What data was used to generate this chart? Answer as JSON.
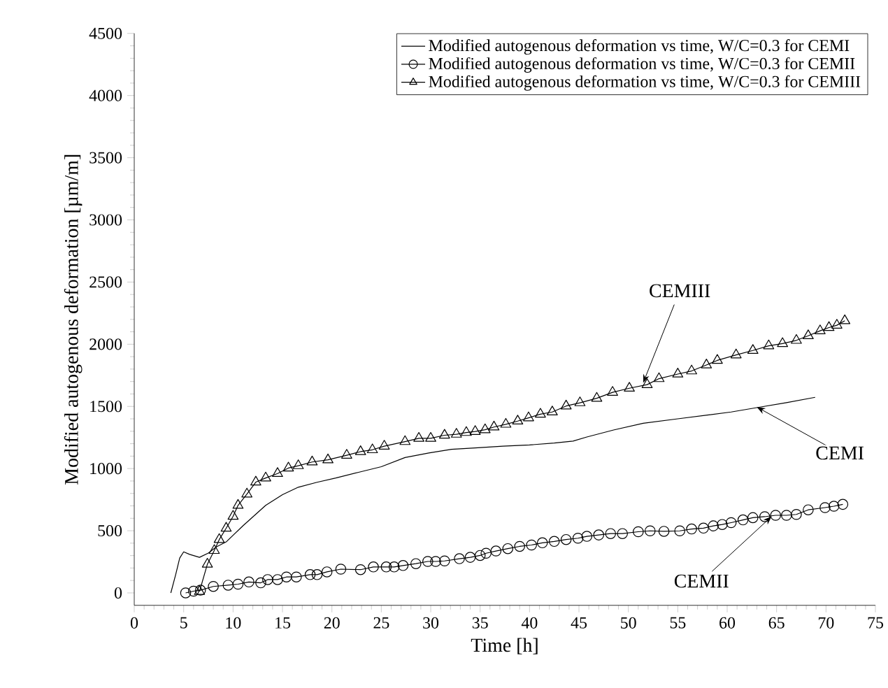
{
  "chart_data": {
    "type": "line",
    "xlabel": "Time [h]",
    "ylabel": "Modified autogenous deformation [µm/m]",
    "xlim": [
      0,
      75
    ],
    "xticks": [
      0,
      5,
      10,
      15,
      20,
      25,
      30,
      35,
      40,
      45,
      50,
      55,
      60,
      65,
      70,
      75
    ],
    "ylim": [
      -100,
      4500
    ],
    "yticks": [
      0,
      500,
      1000,
      1500,
      2000,
      2500,
      3000,
      3500,
      4000,
      4500
    ],
    "grid": false,
    "legend": "top right",
    "series": [
      {
        "name": "Modified autogenous deformation vs time, W/C=0.3 for CEMI",
        "color": "#000000",
        "marker": "none",
        "x": [
          3.7,
          4.2,
          4.6,
          5.0,
          5.6,
          6.6,
          7.5,
          8.3,
          9.3,
          11.0,
          13.3,
          15.0,
          16.6,
          18.5,
          20.4,
          22.7,
          25.0,
          27.4,
          29.8,
          32.1,
          34.5,
          37.3,
          40.0,
          42.5,
          44.4,
          45.8,
          48.5,
          51.5,
          55.0,
          58.0,
          60.4,
          63.0,
          66.0,
          68.9
        ],
        "values": [
          0,
          150,
          280,
          330,
          310,
          286,
          320,
          370,
          410,
          540,
          704,
          790,
          850,
          890,
          924,
          970,
          1015,
          1089,
          1125,
          1155,
          1166,
          1180,
          1190,
          1205,
          1221,
          1254,
          1310,
          1364,
          1400,
          1430,
          1455,
          1490,
          1530,
          1573
        ]
      },
      {
        "name": "Modified autogenous deformation vs time, W/C=0.3 for CEMII",
        "color": "#000000",
        "marker": "circle",
        "x": [
          5.2,
          6.0,
          6.7,
          8.0,
          9.5,
          10.5,
          11.6,
          12.8,
          13.5,
          14.5,
          15.4,
          16.4,
          17.8,
          18.5,
          19.5,
          20.9,
          22.9,
          24.2,
          25.5,
          26.3,
          27.2,
          28.5,
          29.7,
          30.5,
          31.4,
          32.9,
          34.0,
          35.0,
          35.6,
          36.6,
          37.8,
          39.0,
          40.2,
          41.3,
          42.5,
          43.7,
          44.9,
          45.8,
          47.0,
          48.2,
          49.4,
          51.0,
          52.2,
          53.6,
          55.2,
          56.4,
          57.6,
          58.6,
          59.5,
          60.4,
          61.6,
          62.6,
          63.8,
          64.9,
          66.0,
          67.0,
          68.2,
          69.9,
          70.8,
          71.7
        ],
        "values": [
          0,
          14,
          22,
          52,
          62,
          70,
          88,
          81,
          107,
          107,
          128,
          128,
          147,
          147,
          169,
          191,
          187,
          209,
          209,
          209,
          220,
          235,
          253,
          253,
          257,
          275,
          286,
          301,
          319,
          337,
          356,
          374,
          385,
          403,
          414,
          429,
          440,
          455,
          466,
          477,
          477,
          492,
          499,
          495,
          499,
          514,
          521,
          539,
          550,
          565,
          587,
          605,
          613,
          624,
          624,
          631,
          668,
          686,
          697,
          712
        ]
      },
      {
        "name": "Modified autogenous deformation vs time, W/C=0.3 for CEMIII",
        "color": "#000000",
        "marker": "triangle",
        "x": [
          6.6,
          7.4,
          8.1,
          8.6,
          9.3,
          10.0,
          10.5,
          11.4,
          12.3,
          13.3,
          14.5,
          15.6,
          16.6,
          18.0,
          19.6,
          21.5,
          22.9,
          24.1,
          25.3,
          27.4,
          28.8,
          30.0,
          31.4,
          32.6,
          33.6,
          34.5,
          35.5,
          36.4,
          37.6,
          38.8,
          39.9,
          41.1,
          42.3,
          43.7,
          45.1,
          46.8,
          48.4,
          50.1,
          51.9,
          53.1,
          55.0,
          56.4,
          57.9,
          59.0,
          60.9,
          62.6,
          64.2,
          65.6,
          67.0,
          68.2,
          69.4,
          70.3,
          71.1,
          71.9
        ],
        "values": [
          11,
          231,
          341,
          429,
          520,
          616,
          704,
          795,
          891,
          924,
          960,
          1004,
          1023,
          1053,
          1070,
          1107,
          1136,
          1151,
          1180,
          1217,
          1243,
          1243,
          1268,
          1276,
          1290,
          1298,
          1312,
          1334,
          1356,
          1382,
          1408,
          1437,
          1455,
          1503,
          1529,
          1565,
          1613,
          1646,
          1675,
          1723,
          1760,
          1785,
          1833,
          1870,
          1914,
          1950,
          1987,
          2005,
          2031,
          2068,
          2108,
          2134,
          2153,
          2189
        ]
      }
    ],
    "annotations": [
      {
        "text": "CEMIII",
        "x": 51.5,
        "y": 1690
      },
      {
        "text": "CEMI",
        "x": 63,
        "y": 1495
      },
      {
        "text": "CEMII",
        "x": 64.5,
        "y": 615
      }
    ]
  }
}
